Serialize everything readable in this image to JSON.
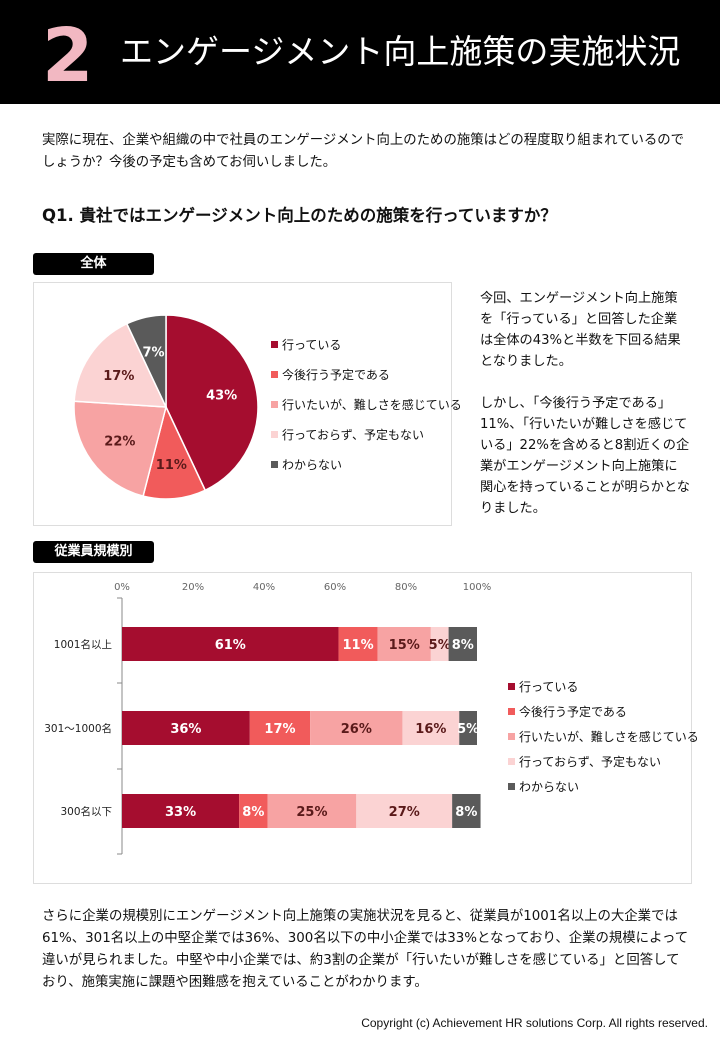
{
  "header": {
    "number": "2",
    "title": "エンゲージメント向上施策の実施状況"
  },
  "intro": "実際に現在、企業や組織の中で社員のエンゲージメント向上のための施策はどの程度取り組まれているのでしょうか？今後の予定も含めてお伺いしました。",
  "question": "Q1. 貴社ではエンゲージメント向上のための施策を行っていますか？",
  "tags": {
    "overall": "全体",
    "by_size": "従業員規模別"
  },
  "colors": [
    "#a50d2f",
    "#f15b5b",
    "#f7a3a3",
    "#fbd3d3",
    "#5a5a5a"
  ],
  "side_text": [
    "今回、エンゲージメント向上施策を「行っている」と回答した企業は全体の43%と半数を下回る結果となりました。",
    "しかし、「今後行う予定である」11%、「行いたいが難しさを感じている」22%を含めると8割近くの企業がエンゲージメント向上施策に関心を持っていることが明らかとなりました。"
  ],
  "chart_data": [
    {
      "type": "pie",
      "title": "全体",
      "categories": [
        "行っている",
        "今後行う予定である",
        "行いたいが、難しさを感じている",
        "行っておらず、予定もない",
        "わからない"
      ],
      "values": [
        43,
        11,
        22,
        17,
        7
      ],
      "labels": [
        "43%",
        "11%",
        "22%",
        "17%",
        "7%"
      ],
      "legend": [
        "行っている",
        "今後行う予定である",
        "行いたいが、難しさを感じている",
        "行っておらず、予定もない",
        "わからない"
      ]
    },
    {
      "type": "bar",
      "orientation": "horizontal",
      "stacked": true,
      "title": "従業員規模別",
      "categories": [
        "1001名以上",
        "301～1000名",
        "300名以下"
      ],
      "x_ticks": [
        "0%",
        "20%",
        "40%",
        "60%",
        "80%",
        "100%"
      ],
      "xlim": [
        0,
        100
      ],
      "series": [
        {
          "name": "行っている",
          "values": [
            61,
            36,
            33
          ],
          "labels": [
            "61%",
            "36%",
            "33%"
          ]
        },
        {
          "name": "今後行う予定である",
          "values": [
            11,
            17,
            8
          ],
          "labels": [
            "11%",
            "17%",
            "8%"
          ]
        },
        {
          "name": "行いたいが、難しさを感じている",
          "values": [
            15,
            26,
            25
          ],
          "labels": [
            "15%",
            "26%",
            "25%"
          ]
        },
        {
          "name": "行っておらず、予定もない",
          "values": [
            5,
            16,
            27
          ],
          "labels": [
            "5%",
            "16%",
            "27%"
          ]
        },
        {
          "name": "わからない",
          "values": [
            8,
            5,
            8
          ],
          "labels": [
            "8%",
            "5%",
            "8%"
          ]
        }
      ],
      "legend": [
        "行っている",
        "今後行う予定である",
        "行いたいが、難しさを感じている",
        "行っておらず、予定もない",
        "わからない"
      ]
    }
  ],
  "bottom_text": "さらに企業の規模別にエンゲージメント向上施策の実施状況を見ると、従業員が1001名以上の大企業では61%、301名以上の中堅企業では36%、300名以下の中小企業では33%となっており、企業の規模によって違いが見られました。中堅や中小企業では、約3割の企業が「行いたいが難しさを感じている」と回答しており、施策実施に課題や困難感を抱えていることがわかります。",
  "copyright": "Copyright (c)  Achievement HR solutions Corp. All rights reserved."
}
